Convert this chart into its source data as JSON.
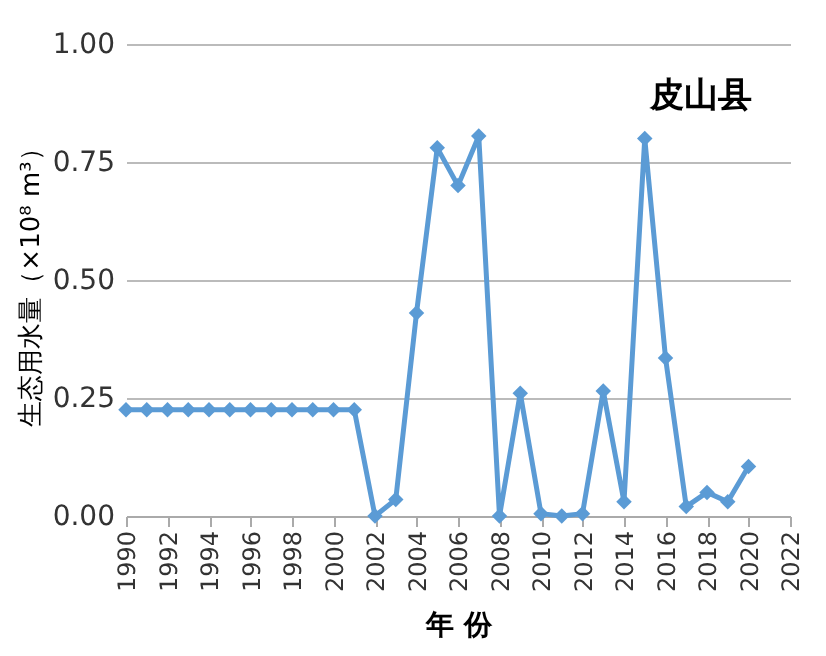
{
  "chart_data": {
    "type": "line",
    "title": "皮山县",
    "xlabel": "年 份",
    "ylabel": "生态用水量（×10⁸ m³）",
    "x": [
      1990,
      1991,
      1992,
      1993,
      1994,
      1995,
      1996,
      1997,
      1998,
      1999,
      2000,
      2001,
      2002,
      2003,
      2004,
      2005,
      2006,
      2007,
      2008,
      2009,
      2010,
      2011,
      2012,
      2013,
      2014,
      2015,
      2016,
      2017,
      2018,
      2019,
      2020
    ],
    "series": [
      {
        "color": "#5b9bd5",
        "values": [
          0.225,
          0.225,
          0.225,
          0.225,
          0.225,
          0.225,
          0.225,
          0.225,
          0.225,
          0.225,
          0.225,
          0.225,
          0.0,
          0.035,
          0.43,
          0.78,
          0.7,
          0.805,
          0.0,
          0.26,
          0.005,
          0.0,
          0.005,
          0.265,
          0.03,
          0.8,
          0.335,
          0.02,
          0.05,
          0.03,
          0.105
        ]
      }
    ],
    "xlim": [
      1990,
      2022
    ],
    "xticks": [
      1990,
      1992,
      1994,
      1996,
      1998,
      2000,
      2002,
      2004,
      2006,
      2008,
      2010,
      2012,
      2014,
      2016,
      2018,
      2020,
      2022
    ],
    "ylim": [
      0,
      1
    ],
    "yticks": [
      {
        "value": 0,
        "label": "0.00"
      },
      {
        "value": 0.25,
        "label": "0.25"
      },
      {
        "value": 0.5,
        "label": "0.50"
      },
      {
        "value": 0.75,
        "label": "0.75"
      },
      {
        "value": 1,
        "label": "1.00"
      }
    ],
    "grid": "y",
    "marker": "diamond",
    "line_style": "solid"
  }
}
